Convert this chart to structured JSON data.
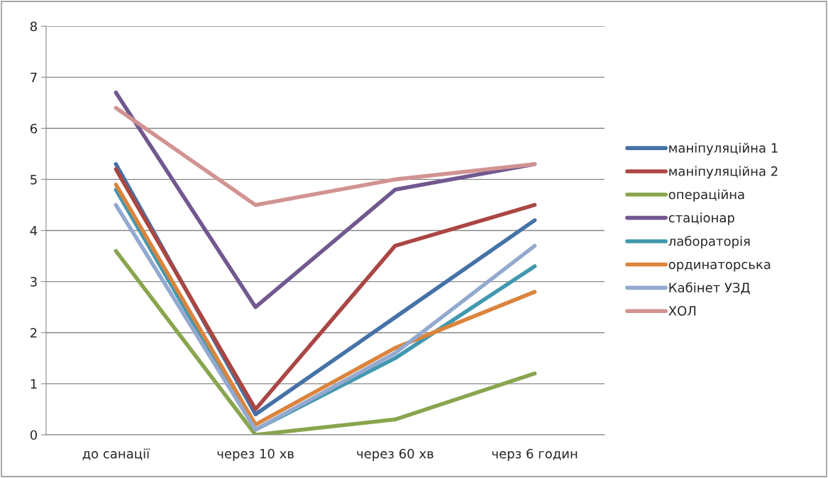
{
  "chart_data": {
    "type": "line",
    "categories": [
      "до санації",
      "через 10 хв",
      "через 60 хв",
      "черз 6 годин"
    ],
    "ylim": [
      0,
      8
    ],
    "yticks": [
      0,
      1,
      2,
      3,
      4,
      5,
      6,
      7,
      8
    ],
    "grid": "y",
    "legend": "right",
    "marker": "none",
    "line_style": "solid",
    "series": [
      {
        "name": "маніпуляційна 1",
        "color": "#4572a7",
        "values": [
          5.3,
          0.4,
          2.3,
          4.2
        ]
      },
      {
        "name": "маніпуляційна 2",
        "color": "#aa4643",
        "values": [
          5.2,
          0.5,
          3.7,
          4.5
        ]
      },
      {
        "name": "операційна",
        "color": "#89a54e",
        "values": [
          3.6,
          0.0,
          0.3,
          1.2
        ]
      },
      {
        "name": "стаціонар",
        "color": "#71588f",
        "values": [
          6.7,
          2.5,
          4.8,
          5.3
        ]
      },
      {
        "name": "лабораторія",
        "color": "#4198af",
        "values": [
          4.8,
          0.1,
          1.5,
          3.3
        ]
      },
      {
        "name": "ординаторська",
        "color": "#db843d",
        "values": [
          4.9,
          0.2,
          1.7,
          2.8
        ]
      },
      {
        "name": "Кабінет УЗД",
        "color": "#93a9cf",
        "values": [
          4.5,
          0.1,
          1.6,
          3.7
        ]
      },
      {
        "name": "ХОЛ",
        "color": "#d19392",
        "values": [
          6.4,
          4.5,
          5.0,
          5.3
        ]
      }
    ]
  }
}
